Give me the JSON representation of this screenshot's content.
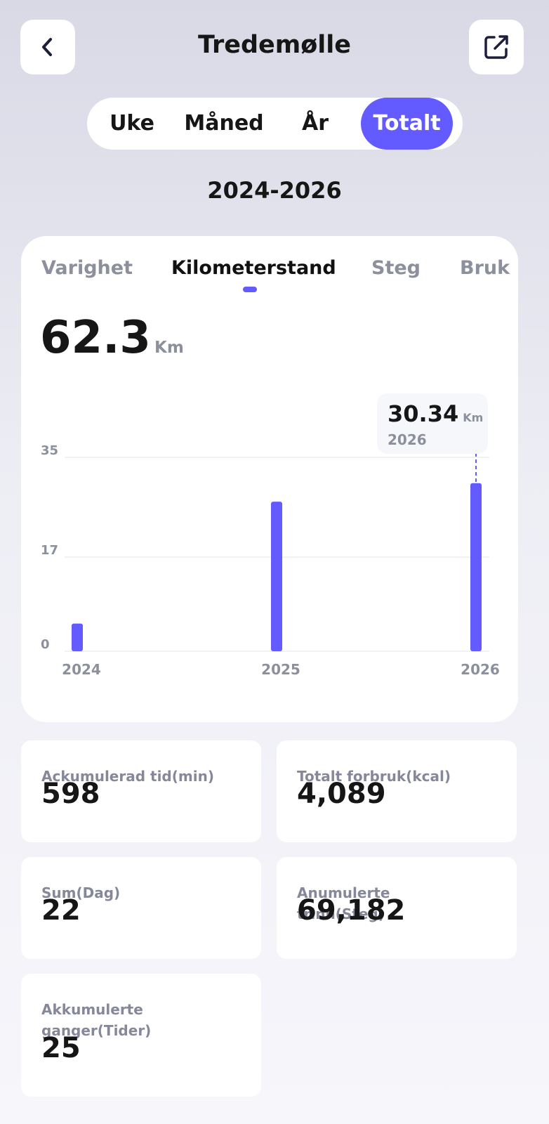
{
  "header": {
    "title": "Tredemølle"
  },
  "tabs": [
    "Uke",
    "Måned",
    "År",
    "Totalt"
  ],
  "period": "2024-2026",
  "metric_tabs": [
    "Varighet",
    "Kilometerstand",
    "Steg",
    "Bruk"
  ],
  "total": {
    "value": 62.3,
    "unit": "Km"
  },
  "chart_data": {
    "type": "bar",
    "categories": [
      "2024",
      "2025",
      "2026"
    ],
    "values": [
      5,
      27,
      30.34
    ],
    "color": "#635bff",
    "ylim": [
      0,
      35
    ],
    "yticks": [
      0,
      17,
      35
    ],
    "grid": true,
    "unit": "Km"
  },
  "stats": [
    {
      "label": "Ackumulerad tid(min)",
      "value": "598"
    },
    {
      "label": "Totalt forbruk(kcal)",
      "value": "4,089"
    },
    {
      "label": "Sum(Dag)",
      "value": "22"
    },
    {
      "label": "Anumulerte trinn(Steg)",
      "value": "69,182"
    },
    {
      "label": "Akkumulerte ganger(Tider)",
      "value": "25"
    }
  ]
}
